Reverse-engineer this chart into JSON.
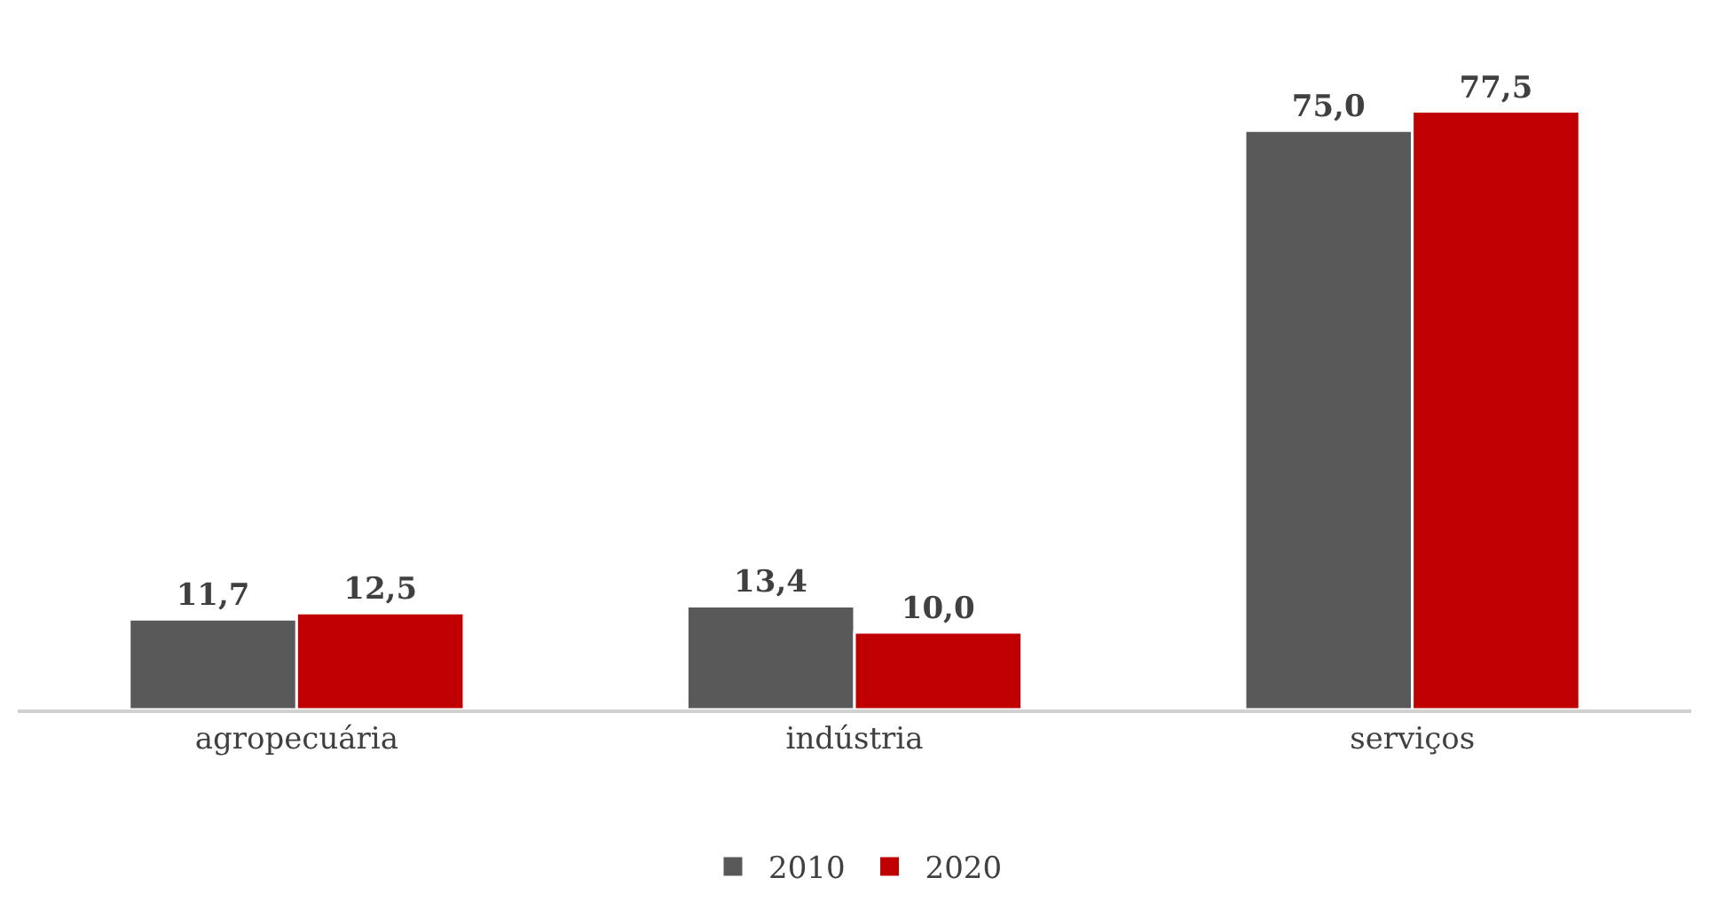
{
  "chart_data": {
    "type": "bar",
    "categories": [
      "agropecuária",
      "indústria",
      "serviços"
    ],
    "series": [
      {
        "name": "2010",
        "color": "#595959",
        "values": [
          11.7,
          13.4,
          75.0
        ],
        "value_labels": [
          "11,7",
          "13,4",
          "75,0"
        ]
      },
      {
        "name": "2020",
        "color": "#c00000",
        "values": [
          12.5,
          10.0,
          77.5
        ],
        "value_labels": [
          "12,5",
          "10,0",
          "77,5"
        ]
      }
    ],
    "legend": "bottom"
  }
}
